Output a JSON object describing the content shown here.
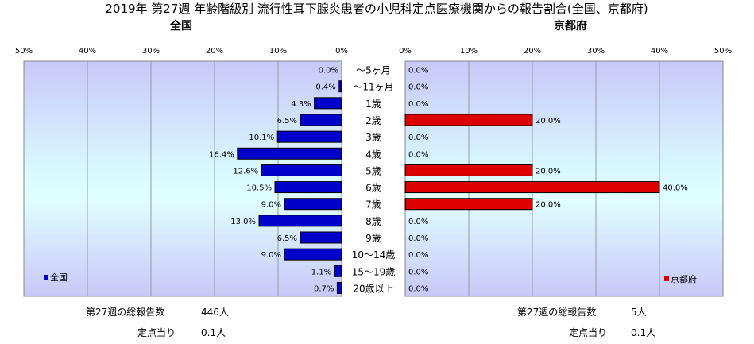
{
  "chart_data": [
    {
      "type": "bar",
      "orientation": "horizontal",
      "direction": "left",
      "title": "2019年 第27週 年齢階級別 流行性耳下腺炎患者の小児科定点医療機関からの報告割合(全国、京都府)",
      "subtitle": "全国",
      "categories": [
        "～5ヶ月",
        "～11ヶ月",
        "1歳",
        "2歳",
        "3歳",
        "4歳",
        "5歳",
        "6歳",
        "7歳",
        "8歳",
        "9歳",
        "10～14歳",
        "15～19歳",
        "20歳以上"
      ],
      "series": [
        {
          "name": "全国",
          "values": [
            0.0,
            0.4,
            4.3,
            6.5,
            10.1,
            16.4,
            12.6,
            10.5,
            9.0,
            13.0,
            6.5,
            9.0,
            1.1,
            0.7
          ],
          "labels": [
            "0.0%",
            "0.4%",
            "4.3%",
            "6.5%",
            "10.1%",
            "16.4%",
            "12.6%",
            "10.5%",
            "9.0%",
            "13.0%",
            "6.5%",
            "9.0%",
            "1.1%",
            "0.7%"
          ]
        }
      ],
      "xlim": [
        0,
        50
      ],
      "ticks": [
        "50%",
        "40%",
        "30%",
        "20%",
        "10%",
        "0%"
      ],
      "grid": true,
      "legend": "bottom-left",
      "bar_color": "#0000cc",
      "footer": {
        "total_label": "第27週の総報告数",
        "total_value": "446人",
        "per_label": "定点当り",
        "per_value": "0.1人"
      }
    },
    {
      "type": "bar",
      "orientation": "horizontal",
      "direction": "right",
      "subtitle": "京都府",
      "categories": [
        "～5ヶ月",
        "～11ヶ月",
        "1歳",
        "2歳",
        "3歳",
        "4歳",
        "5歳",
        "6歳",
        "7歳",
        "8歳",
        "9歳",
        "10～14歳",
        "15～19歳",
        "20歳以上"
      ],
      "series": [
        {
          "name": "京都府",
          "values": [
            0.0,
            0.0,
            0.0,
            20.0,
            0.0,
            0.0,
            20.0,
            40.0,
            20.0,
            0.0,
            0.0,
            0.0,
            0.0,
            0.0
          ],
          "labels": [
            "0.0%",
            "0.0%",
            "0.0%",
            "20.0%",
            "0.0%",
            "0.0%",
            "20.0%",
            "40.0%",
            "20.0%",
            "0.0%",
            "0.0%",
            "0.0%",
            "0.0%",
            "0.0%"
          ]
        }
      ],
      "xlim": [
        0,
        50
      ],
      "ticks": [
        "0%",
        "10%",
        "20%",
        "30%",
        "40%",
        "50%"
      ],
      "grid": true,
      "legend": "bottom-right",
      "bar_color": "#dd0000",
      "footer": {
        "total_label": "第27週の総報告数",
        "total_value": "5人",
        "per_label": "定点当り",
        "per_value": "0.1人"
      }
    }
  ]
}
